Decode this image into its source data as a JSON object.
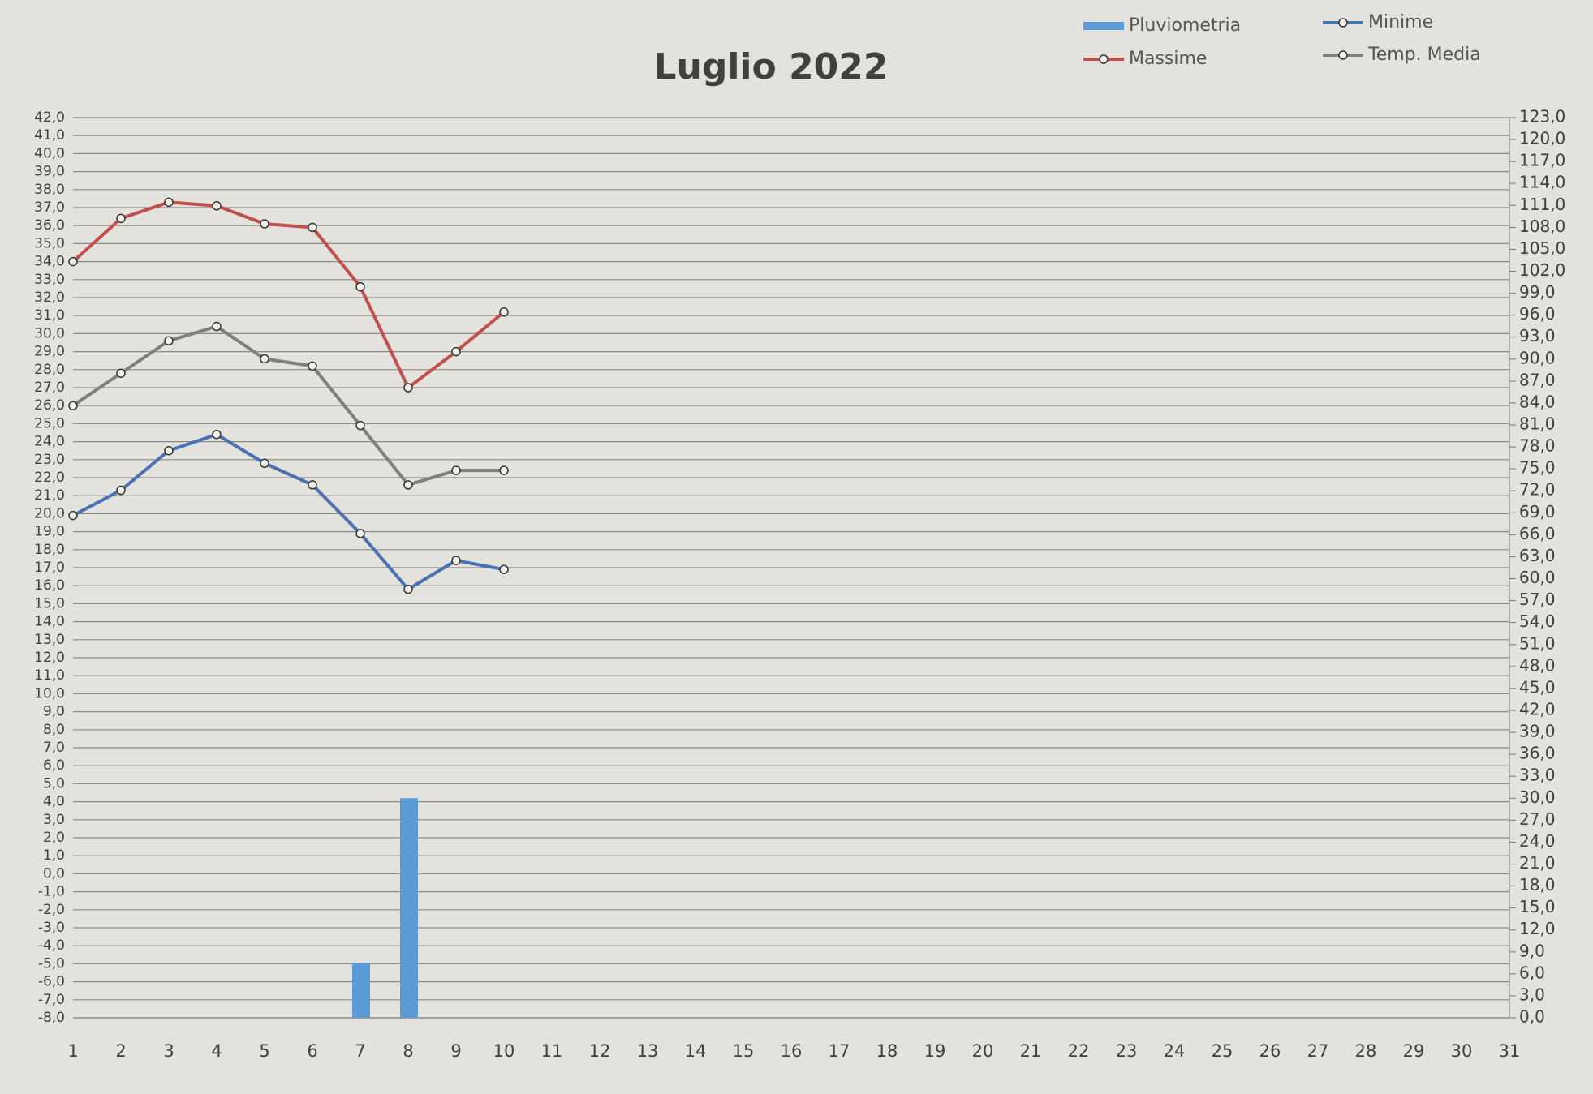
{
  "chart_data": {
    "type": "line",
    "title": "Luglio 2022",
    "categories": [
      "1",
      "2",
      "3",
      "4",
      "5",
      "6",
      "7",
      "8",
      "9",
      "10",
      "11",
      "12",
      "13",
      "14",
      "15",
      "16",
      "17",
      "18",
      "19",
      "20",
      "21",
      "22",
      "23",
      "24",
      "25",
      "26",
      "27",
      "28",
      "29",
      "30",
      "31"
    ],
    "series": [
      {
        "name": "Pluviometria",
        "type": "bar",
        "axis": "y2",
        "color": "#5b9bd5",
        "values": [
          null,
          null,
          null,
          null,
          null,
          null,
          7.5,
          30,
          null,
          null,
          null,
          null,
          null,
          null,
          null,
          null,
          null,
          null,
          null,
          null,
          null,
          null,
          null,
          null,
          null,
          null,
          null,
          null,
          null,
          null,
          null
        ]
      },
      {
        "name": "Minime",
        "type": "line",
        "color": "#4a72b0",
        "values": [
          19.9,
          21.3,
          23.5,
          24.4,
          22.8,
          21.6,
          18.9,
          15.8,
          17.4,
          16.9,
          null,
          null,
          null,
          null,
          null,
          null,
          null,
          null,
          null,
          null,
          null,
          null,
          null,
          null,
          null,
          null,
          null,
          null,
          null,
          null,
          null
        ]
      },
      {
        "name": "Massime",
        "type": "line",
        "color": "#c0504d",
        "values": [
          34.0,
          36.4,
          37.3,
          37.1,
          36.1,
          35.9,
          32.6,
          27.0,
          29.0,
          31.2,
          null,
          null,
          null,
          null,
          null,
          null,
          null,
          null,
          null,
          null,
          null,
          null,
          null,
          null,
          null,
          null,
          null,
          null,
          null,
          null,
          null
        ]
      },
      {
        "name": "Temp. Media",
        "type": "line",
        "color": "#7f7f7f",
        "values": [
          26.0,
          27.8,
          29.6,
          30.4,
          28.6,
          28.2,
          24.9,
          21.6,
          22.4,
          22.4,
          null,
          null,
          null,
          null,
          null,
          null,
          null,
          null,
          null,
          null,
          null,
          null,
          null,
          null,
          null,
          null,
          null,
          null,
          null,
          null,
          null
        ]
      }
    ],
    "ylim": [
      -8,
      42
    ],
    "yticks": [
      {
        "value": -8,
        "label": "-8,0"
      },
      {
        "value": -7,
        "label": "-7,0"
      },
      {
        "value": -6,
        "label": "-6,0"
      },
      {
        "value": -5,
        "label": "-5,0"
      },
      {
        "value": -4,
        "label": "-4,0"
      },
      {
        "value": -3,
        "label": "-3,0"
      },
      {
        "value": -2,
        "label": "-2,0"
      },
      {
        "value": -1,
        "label": "-1,0"
      },
      {
        "value": 0,
        "label": "0,0"
      },
      {
        "value": 1,
        "label": "1,0"
      },
      {
        "value": 2,
        "label": "2,0"
      },
      {
        "value": 3,
        "label": "3,0"
      },
      {
        "value": 4,
        "label": "4,0"
      },
      {
        "value": 5,
        "label": "5,0"
      },
      {
        "value": 6,
        "label": "6,0"
      },
      {
        "value": 7,
        "label": "7,0"
      },
      {
        "value": 8,
        "label": "8,0"
      },
      {
        "value": 9,
        "label": "9,0"
      },
      {
        "value": 10,
        "label": "10,0"
      },
      {
        "value": 11,
        "label": "11,0"
      },
      {
        "value": 12,
        "label": "12,0"
      },
      {
        "value": 13,
        "label": "13,0"
      },
      {
        "value": 14,
        "label": "14,0"
      },
      {
        "value": 15,
        "label": "15,0"
      },
      {
        "value": 16,
        "label": "16,0"
      },
      {
        "value": 17,
        "label": "17,0"
      },
      {
        "value": 18,
        "label": "18,0"
      },
      {
        "value": 19,
        "label": "19,0"
      },
      {
        "value": 20,
        "label": "20,0"
      },
      {
        "value": 21,
        "label": "21,0"
      },
      {
        "value": 22,
        "label": "22,0"
      },
      {
        "value": 23,
        "label": "23,0"
      },
      {
        "value": 24,
        "label": "24,0"
      },
      {
        "value": 25,
        "label": "25,0"
      },
      {
        "value": 26,
        "label": "26,0"
      },
      {
        "value": 27,
        "label": "27,0"
      },
      {
        "value": 28,
        "label": "28,0"
      },
      {
        "value": 29,
        "label": "29,0"
      },
      {
        "value": 30,
        "label": "30,0"
      },
      {
        "value": 31,
        "label": "31,0"
      },
      {
        "value": 32,
        "label": "32,0"
      },
      {
        "value": 33,
        "label": "33,0"
      },
      {
        "value": 34,
        "label": "34,0"
      },
      {
        "value": 35,
        "label": "35,0"
      },
      {
        "value": 36,
        "label": "36,0"
      },
      {
        "value": 37,
        "label": "37,0"
      },
      {
        "value": 38,
        "label": "38,0"
      },
      {
        "value": 39,
        "label": "39,0"
      },
      {
        "value": 40,
        "label": "40,0"
      },
      {
        "value": 41,
        "label": "41,0"
      },
      {
        "value": 42,
        "label": "42,0"
      }
    ],
    "y2lim": [
      0,
      123
    ],
    "y2ticks": [
      {
        "value": 0,
        "label": "0,0"
      },
      {
        "value": 3,
        "label": "3,0"
      },
      {
        "value": 6,
        "label": "6,0"
      },
      {
        "value": 9,
        "label": "9,0"
      },
      {
        "value": 12,
        "label": "12,0"
      },
      {
        "value": 15,
        "label": "15,0"
      },
      {
        "value": 18,
        "label": "18,0"
      },
      {
        "value": 21,
        "label": "21,0"
      },
      {
        "value": 24,
        "label": "24,0"
      },
      {
        "value": 27,
        "label": "27,0"
      },
      {
        "value": 30,
        "label": "30,0"
      },
      {
        "value": 33,
        "label": "33,0"
      },
      {
        "value": 36,
        "label": "36,0"
      },
      {
        "value": 39,
        "label": "39,0"
      },
      {
        "value": 42,
        "label": "42,0"
      },
      {
        "value": 45,
        "label": "45,0"
      },
      {
        "value": 48,
        "label": "48,0"
      },
      {
        "value": 51,
        "label": "51,0"
      },
      {
        "value": 54,
        "label": "54,0"
      },
      {
        "value": 57,
        "label": "57,0"
      },
      {
        "value": 60,
        "label": "60,0"
      },
      {
        "value": 63,
        "label": "63,0"
      },
      {
        "value": 66,
        "label": "66,0"
      },
      {
        "value": 69,
        "label": "69,0"
      },
      {
        "value": 72,
        "label": "72,0"
      },
      {
        "value": 75,
        "label": "75,0"
      },
      {
        "value": 78,
        "label": "78,0"
      },
      {
        "value": 81,
        "label": "81,0"
      },
      {
        "value": 84,
        "label": "84,0"
      },
      {
        "value": 87,
        "label": "87,0"
      },
      {
        "value": 90,
        "label": "90,0"
      },
      {
        "value": 93,
        "label": "93,0"
      },
      {
        "value": 96,
        "label": "96,0"
      },
      {
        "value": 99,
        "label": "99,0"
      },
      {
        "value": 102,
        "label": "102,0"
      },
      {
        "value": 105,
        "label": "105,0"
      },
      {
        "value": 108,
        "label": "108,0"
      },
      {
        "value": 111,
        "label": "111,0"
      },
      {
        "value": 114,
        "label": "114,0"
      },
      {
        "value": 117,
        "label": "117,0"
      },
      {
        "value": 120,
        "label": "120,0"
      },
      {
        "value": 123,
        "label": "123,0"
      }
    ],
    "grid": true,
    "legend": "top-right"
  }
}
